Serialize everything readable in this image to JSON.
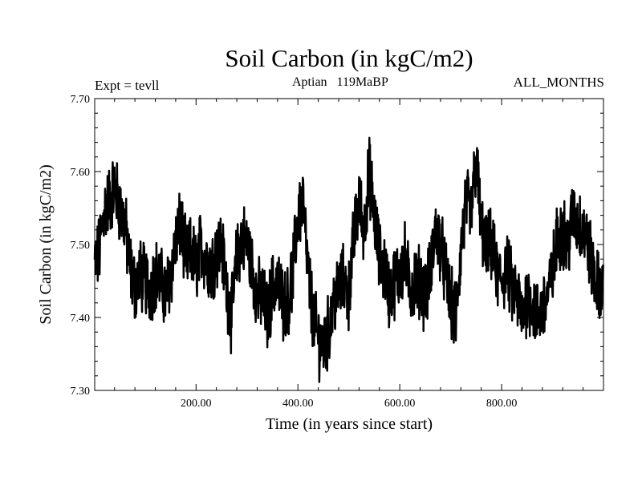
{
  "chart_data": {
    "type": "line",
    "title": "Soil Carbon (in kgC/m2)",
    "subtitle": "Aptian   119MaBP",
    "left_annotation": "Expt = tevll",
    "right_annotation": "ALL_MONTHS",
    "xlabel": "Time (in years since start)",
    "ylabel": "Soil Carbon (in kgC/m2)",
    "xlim": [
      1,
      1000
    ],
    "ylim": [
      7.3,
      7.7
    ],
    "x_ticks": [
      200,
      400,
      600,
      800
    ],
    "x_tick_labels": [
      "200.00",
      "400.00",
      "600.00",
      "800.00"
    ],
    "y_ticks": [
      7.3,
      7.4,
      7.5,
      7.6,
      7.7
    ],
    "y_tick_labels": [
      "7.30",
      "7.40",
      "7.50",
      "7.60",
      "7.70"
    ],
    "series": [
      {
        "name": "Soil Carbon",
        "color": "#000000",
        "x": [
          0,
          10,
          20,
          30,
          40,
          50,
          60,
          70,
          80,
          90,
          100,
          110,
          120,
          130,
          140,
          150,
          160,
          170,
          180,
          190,
          200,
          210,
          220,
          230,
          240,
          250,
          260,
          270,
          280,
          290,
          300,
          310,
          320,
          330,
          340,
          350,
          360,
          370,
          380,
          390,
          400,
          410,
          420,
          430,
          440,
          450,
          460,
          470,
          480,
          490,
          500,
          510,
          520,
          530,
          540,
          550,
          560,
          570,
          580,
          590,
          600,
          610,
          620,
          630,
          640,
          650,
          660,
          670,
          680,
          690,
          700,
          710,
          720,
          730,
          740,
          750,
          760,
          770,
          780,
          790,
          800,
          810,
          820,
          830,
          840,
          850,
          860,
          870,
          880,
          890,
          900,
          910,
          920,
          930,
          940,
          950,
          960,
          970,
          980,
          990,
          1000
        ],
        "values": [
          7.47,
          7.49,
          7.55,
          7.56,
          7.58,
          7.55,
          7.53,
          7.47,
          7.44,
          7.46,
          7.45,
          7.44,
          7.46,
          7.45,
          7.43,
          7.46,
          7.5,
          7.53,
          7.48,
          7.49,
          7.47,
          7.5,
          7.48,
          7.47,
          7.49,
          7.5,
          7.44,
          7.4,
          7.48,
          7.51,
          7.5,
          7.47,
          7.43,
          7.43,
          7.4,
          7.44,
          7.45,
          7.42,
          7.42,
          7.46,
          7.54,
          7.56,
          7.46,
          7.4,
          7.37,
          7.36,
          7.38,
          7.42,
          7.44,
          7.45,
          7.43,
          7.51,
          7.56,
          7.52,
          7.6,
          7.54,
          7.48,
          7.47,
          7.43,
          7.45,
          7.46,
          7.48,
          7.44,
          7.45,
          7.45,
          7.43,
          7.46,
          7.52,
          7.5,
          7.46,
          7.42,
          7.4,
          7.49,
          7.56,
          7.54,
          7.62,
          7.52,
          7.49,
          7.5,
          7.46,
          7.45,
          7.47,
          7.44,
          7.43,
          7.4,
          7.43,
          7.42,
          7.4,
          7.41,
          7.43,
          7.46,
          7.51,
          7.52,
          7.5,
          7.54,
          7.53,
          7.52,
          7.5,
          7.46,
          7.44,
          7.45
        ]
      }
    ]
  }
}
